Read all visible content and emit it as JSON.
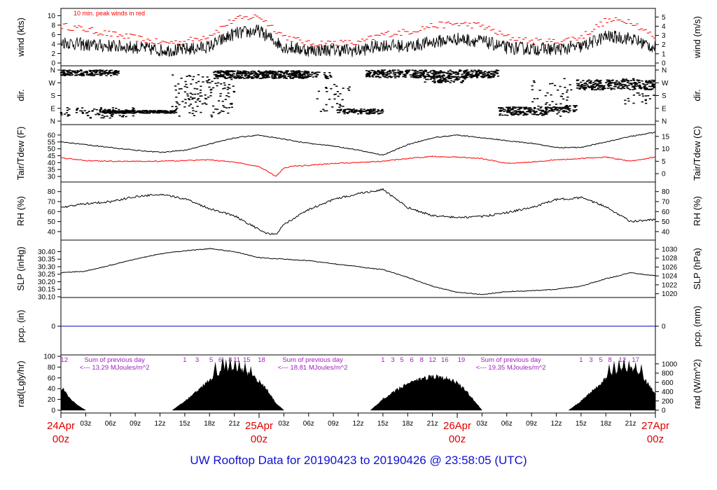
{
  "chart_data": [
    {
      "type": "line",
      "ylabel_left": "wind (kts)",
      "ylabel_right": "wind (m/s)",
      "left_ticks": [
        "0",
        "2",
        "4",
        "6",
        "8",
        "10"
      ],
      "right_ticks": [
        "0",
        "1",
        "2",
        "3",
        "4",
        "5"
      ],
      "ylim": [
        0,
        10.5
      ],
      "annotation": "10 min. peak winds in red",
      "series": [
        {
          "name": "wind",
          "color": "#000000",
          "x_hours": [
            0,
            3,
            6,
            9,
            12,
            15,
            18,
            21,
            24,
            27,
            30,
            33,
            36,
            39,
            42,
            45,
            48,
            51,
            54,
            57,
            60,
            63,
            66,
            69,
            72
          ],
          "values": [
            4.5,
            3.8,
            3.6,
            3.3,
            2.7,
            2.8,
            3.5,
            6.2,
            6.8,
            3.4,
            2.7,
            2.8,
            2.6,
            3.8,
            3.5,
            4.4,
            5.1,
            4.6,
            3.2,
            3.0,
            2.9,
            3.4,
            5.6,
            5.2,
            3.2
          ]
        },
        {
          "name": "10 min. peak winds",
          "color": "#ff0000",
          "x_hours": [
            0,
            3,
            6,
            9,
            12,
            15,
            18,
            21,
            24,
            27,
            30,
            33,
            36,
            39,
            42,
            45,
            48,
            51,
            54,
            57,
            60,
            63,
            66,
            69,
            72
          ],
          "values": [
            7.6,
            6.8,
            5.8,
            5.0,
            4.0,
            4.2,
            5.6,
            8.9,
            9.6,
            5.4,
            3.8,
            4.0,
            3.9,
            5.8,
            6.3,
            7.6,
            8.0,
            7.6,
            5.2,
            4.3,
            4.2,
            5.2,
            8.6,
            8.7,
            5.0
          ]
        }
      ]
    },
    {
      "type": "scatter",
      "ylabel": "dir.",
      "tick_labels": [
        "N",
        "W",
        "S",
        "E",
        "N"
      ],
      "tick_degrees": [
        360,
        270,
        180,
        90,
        0
      ],
      "segments": [
        {
          "x_start": 0.0,
          "x_end": 7.0,
          "deg_min": 320,
          "deg_max": 360,
          "density": 3
        },
        {
          "x_start": 0.0,
          "x_end": 9.0,
          "deg_min": 20,
          "deg_max": 95,
          "density": 1
        },
        {
          "x_start": 5.0,
          "x_end": 14.0,
          "deg_min": 55,
          "deg_max": 75,
          "density": 3
        },
        {
          "x_start": 13.5,
          "x_end": 21.0,
          "deg_min": 30,
          "deg_max": 330,
          "density": 2
        },
        {
          "x_start": 18.5,
          "x_end": 30.0,
          "deg_min": 300,
          "deg_max": 355,
          "density": 4
        },
        {
          "x_start": 28.0,
          "x_end": 33.0,
          "deg_min": 300,
          "deg_max": 345,
          "density": 1
        },
        {
          "x_start": 31.0,
          "x_end": 35.0,
          "deg_min": 60,
          "deg_max": 260,
          "density": 1
        },
        {
          "x_start": 33.5,
          "x_end": 39.0,
          "deg_min": 50,
          "deg_max": 85,
          "density": 2
        },
        {
          "x_start": 37.0,
          "x_end": 53.0,
          "deg_min": 305,
          "deg_max": 360,
          "density": 3
        },
        {
          "x_start": 44.0,
          "x_end": 49.0,
          "deg_min": 270,
          "deg_max": 320,
          "density": 2
        },
        {
          "x_start": 53.0,
          "x_end": 59.0,
          "deg_min": 40,
          "deg_max": 100,
          "density": 3
        },
        {
          "x_start": 57.0,
          "x_end": 62.0,
          "deg_min": 30,
          "deg_max": 300,
          "density": 1
        },
        {
          "x_start": 59.0,
          "x_end": 62.5,
          "deg_min": 60,
          "deg_max": 110,
          "density": 2
        },
        {
          "x_start": 62.5,
          "x_end": 72.0,
          "deg_min": 220,
          "deg_max": 290,
          "density": 3
        },
        {
          "x_start": 68.0,
          "x_end": 72.0,
          "deg_min": 120,
          "deg_max": 300,
          "density": 1
        }
      ]
    },
    {
      "type": "line",
      "ylabel_left": "Tair/Tdew (F)",
      "ylabel_right": "Tair/Tdew (C)",
      "left_ticks": [
        "30",
        "35",
        "40",
        "45",
        "50",
        "55",
        "60"
      ],
      "right_ticks": [
        "0",
        "5",
        "10",
        "15"
      ],
      "ylim": [
        28.5,
        63
      ],
      "series": [
        {
          "name": "Tair",
          "color": "#000000",
          "x_hours": [
            0,
            3,
            6,
            9,
            12,
            15,
            18,
            21,
            24,
            27,
            30,
            33,
            36,
            39,
            42,
            45,
            48,
            51,
            54,
            57,
            60,
            63,
            66,
            69,
            72
          ],
          "values": [
            55,
            53,
            51,
            49,
            47.5,
            49,
            53.5,
            58,
            60,
            57,
            54,
            52,
            49,
            45.5,
            53,
            58,
            60,
            58,
            56,
            54,
            51,
            51,
            55,
            59,
            62
          ]
        },
        {
          "name": "Tdew",
          "color": "#ff0000",
          "x_hours": [
            0,
            3,
            6,
            9,
            12,
            15,
            18,
            21,
            24,
            25,
            26,
            27,
            28,
            30,
            33,
            36,
            39,
            42,
            45,
            48,
            51,
            54,
            57,
            60,
            63,
            66,
            69,
            72
          ],
          "values": [
            43.5,
            41.5,
            41,
            41,
            41,
            41.5,
            42,
            40.5,
            37,
            34,
            30,
            36,
            37.5,
            38,
            39.5,
            40,
            41,
            43,
            44.5,
            44,
            43,
            39.5,
            40.5,
            42,
            43,
            44,
            41,
            44
          ]
        }
      ]
    },
    {
      "type": "line",
      "ylabel_left": "RH (%)",
      "ylabel_right": "RH (%)",
      "left_ticks": [
        "40",
        "50",
        "60",
        "70",
        "80"
      ],
      "right_ticks": [
        "40",
        "50",
        "60",
        "70",
        "80"
      ],
      "ylim": [
        35,
        84
      ],
      "series": [
        {
          "name": "RH",
          "color": "#000000",
          "x_hours": [
            0,
            3,
            6,
            9,
            12,
            15,
            18,
            21,
            24,
            25,
            26,
            27,
            30,
            33,
            36,
            39,
            42,
            45,
            48,
            51,
            54,
            57,
            60,
            63,
            66,
            69,
            72
          ],
          "values": [
            64,
            68,
            70,
            75,
            77,
            73,
            63,
            56,
            42,
            38,
            37,
            47,
            62,
            72,
            78,
            82,
            64,
            56,
            54,
            55,
            59,
            64,
            72,
            74,
            65,
            50,
            52
          ]
        }
      ]
    },
    {
      "type": "line",
      "ylabel_left": "SLP (inHg)",
      "ylabel_right": "SLP (hPa)",
      "left_ticks": [
        "30.10",
        "30.15",
        "30.20",
        "30.25",
        "30.30",
        "30.35",
        "30.40"
      ],
      "right_ticks": [
        "1020",
        "1022",
        "1024",
        "1026",
        "1028",
        "1030"
      ],
      "ylim": [
        30.1,
        30.43
      ],
      "series": [
        {
          "name": "SLP",
          "color": "#000000",
          "x_hours": [
            0,
            3,
            6,
            9,
            12,
            15,
            18,
            21,
            24,
            27,
            30,
            33,
            36,
            39,
            42,
            45,
            48,
            51,
            54,
            57,
            60,
            63,
            66,
            69,
            72
          ],
          "values": [
            30.26,
            30.27,
            30.31,
            30.35,
            30.385,
            30.405,
            30.42,
            30.4,
            30.36,
            30.35,
            30.34,
            30.32,
            30.3,
            30.28,
            30.23,
            30.17,
            30.13,
            30.115,
            30.135,
            30.14,
            30.15,
            30.17,
            30.22,
            30.26,
            30.24
          ]
        }
      ]
    },
    {
      "type": "line",
      "ylabel_left": "pcp. (in)",
      "ylabel_right": "pcp. (mm)",
      "left_ticks": [
        "0"
      ],
      "right_ticks": [
        "0"
      ],
      "series": [
        {
          "name": "pcp",
          "color": "#0000cc",
          "x_hours": [
            0,
            72
          ],
          "values": [
            0,
            0
          ]
        }
      ]
    },
    {
      "type": "area",
      "ylabel_left": "rad(Lgly/hr)",
      "ylabel_right": "rad (W/m^2)",
      "left_ticks": [
        "0",
        "20",
        "40",
        "60",
        "80",
        "100"
      ],
      "right_ticks": [
        "0",
        "200",
        "400",
        "600",
        "800",
        "1000"
      ],
      "ylim": [
        0,
        100
      ],
      "day_envelopes": [
        {
          "x_hours": [
            0,
            0.3,
            1,
            2,
            3
          ],
          "values": [
            38,
            42,
            25,
            10,
            0
          ]
        },
        {
          "x_hours": [
            13.5,
            15,
            17,
            18,
            19,
            20,
            21,
            22,
            23,
            24,
            25,
            26,
            27
          ],
          "values": [
            0,
            18,
            45,
            60,
            72,
            78,
            80,
            78,
            70,
            58,
            40,
            15,
            0
          ]
        },
        {
          "x_hours": [
            37.5,
            39,
            41,
            42,
            43,
            44,
            45,
            46,
            47,
            48,
            49,
            50,
            51
          ],
          "values": [
            0,
            22,
            44,
            54,
            60,
            64,
            67,
            66,
            62,
            55,
            40,
            20,
            0
          ]
        },
        {
          "x_hours": [
            61.5,
            63,
            65,
            66,
            67,
            68,
            69,
            70,
            71,
            72
          ],
          "values": [
            0,
            18,
            48,
            64,
            75,
            80,
            82,
            75,
            55,
            30
          ]
        }
      ],
      "peaks": [
        {
          "x": 18.7,
          "v": 90
        },
        {
          "x": 19.6,
          "v": 100
        },
        {
          "x": 20.0,
          "v": 95
        },
        {
          "x": 20.5,
          "v": 98
        },
        {
          "x": 21.1,
          "v": 96
        },
        {
          "x": 21.6,
          "v": 93
        },
        {
          "x": 22.3,
          "v": 90
        },
        {
          "x": 23.0,
          "v": 82
        },
        {
          "x": 66.4,
          "v": 86
        },
        {
          "x": 67.0,
          "v": 92
        },
        {
          "x": 67.6,
          "v": 95
        },
        {
          "x": 68.2,
          "v": 97
        },
        {
          "x": 68.8,
          "v": 93
        },
        {
          "x": 69.6,
          "v": 90
        },
        {
          "x": 70.3,
          "v": 86
        }
      ],
      "hour_markers": [
        {
          "day": 0,
          "labels": [
            {
              "x": 0.4,
              "text": "12"
            },
            {
              "x": 15.0,
              "text": "1"
            },
            {
              "x": 16.5,
              "text": "3"
            },
            {
              "x": 18.2,
              "text": "5"
            },
            {
              "x": 19.3,
              "text": "6"
            },
            {
              "x": 20.5,
              "text": "8"
            },
            {
              "x": 21.3,
              "text": "11"
            },
            {
              "x": 22.5,
              "text": "15"
            },
            {
              "x": 24.3,
              "text": "18"
            }
          ]
        },
        {
          "day": 1,
          "labels": [
            {
              "x": 39.0,
              "text": "1"
            },
            {
              "x": 40.2,
              "text": "3"
            },
            {
              "x": 41.3,
              "text": "5"
            },
            {
              "x": 42.5,
              "text": "6"
            },
            {
              "x": 43.7,
              "text": "8"
            },
            {
              "x": 45.0,
              "text": "12"
            },
            {
              "x": 46.5,
              "text": "16"
            },
            {
              "x": 48.5,
              "text": "19"
            }
          ]
        },
        {
          "day": 2,
          "labels": [
            {
              "x": 63.0,
              "text": "1"
            },
            {
              "x": 64.2,
              "text": "3"
            },
            {
              "x": 65.4,
              "text": "5"
            },
            {
              "x": 66.5,
              "text": "8"
            },
            {
              "x": 68.0,
              "text": "12"
            },
            {
              "x": 69.6,
              "text": "17"
            }
          ]
        }
      ],
      "daily_sums": [
        {
          "x": 6.5,
          "line1": "Sum of previous day",
          "line2": "<--- 13.29 MJoules/m^2"
        },
        {
          "x": 30.5,
          "line1": "Sum of previous day",
          "line2": "<--- 18.81 MJoules/m^2"
        },
        {
          "x": 54.5,
          "line1": "Sum of previous day",
          "line2": "<--- 19.35 MJoules/m^2"
        }
      ]
    }
  ],
  "x_axis": {
    "hour_ticks": [
      {
        "x": 3,
        "label": "03z"
      },
      {
        "x": 6,
        "label": "06z"
      },
      {
        "x": 9,
        "label": "09z"
      },
      {
        "x": 12,
        "label": "12z"
      },
      {
        "x": 15,
        "label": "15z"
      },
      {
        "x": 18,
        "label": "18z"
      },
      {
        "x": 21,
        "label": "21z"
      },
      {
        "x": 27,
        "label": "03z"
      },
      {
        "x": 30,
        "label": "06z"
      },
      {
        "x": 33,
        "label": "09z"
      },
      {
        "x": 36,
        "label": "12z"
      },
      {
        "x": 39,
        "label": "15z"
      },
      {
        "x": 42,
        "label": "18z"
      },
      {
        "x": 45,
        "label": "21z"
      },
      {
        "x": 51,
        "label": "03z"
      },
      {
        "x": 54,
        "label": "06z"
      },
      {
        "x": 57,
        "label": "09z"
      },
      {
        "x": 60,
        "label": "12z"
      },
      {
        "x": 63,
        "label": "15z"
      },
      {
        "x": 66,
        "label": "18z"
      },
      {
        "x": 69,
        "label": "21z"
      }
    ],
    "day_ticks": [
      {
        "x": 0,
        "date": "24Apr",
        "time": "00z"
      },
      {
        "x": 24,
        "date": "25Apr",
        "time": "00z"
      },
      {
        "x": 48,
        "date": "26Apr",
        "time": "00z"
      },
      {
        "x": 72,
        "date": "27Apr",
        "time": "00z"
      }
    ]
  },
  "footer": {
    "title": "UW Rooftop Data for 20190423  to  20190426 @ 23:58:05  (UTC)"
  },
  "colors": {
    "day_label": "#e00000",
    "footer": "#1010d0",
    "rad_text": "#a020c0",
    "pcp_line": "#0000cc"
  }
}
